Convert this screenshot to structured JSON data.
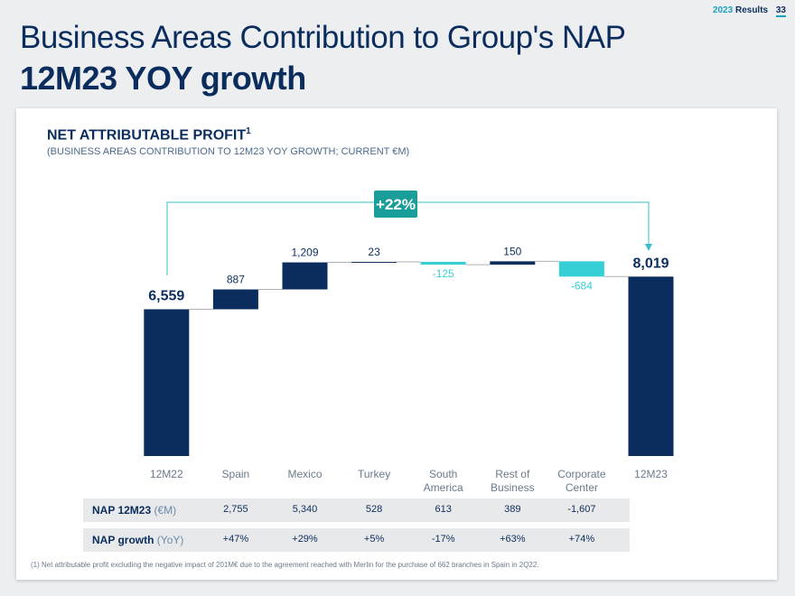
{
  "header": {
    "year": "2023",
    "label": "Results",
    "page": "33"
  },
  "title": "Business Areas Contribution to Group's NAP",
  "subtitle": "12M23 YOY growth",
  "chart_data": {
    "type": "waterfall",
    "title": "NET ATTRIBUTABLE PROFIT",
    "title_note": "1",
    "subtitle": "(BUSINESS AREAS CONTRIBUTION TO 12M23 YOY GROWTH; CURRENT €M)",
    "categories": [
      "12M22",
      "Spain",
      "Mexico",
      "Turkey",
      "South America",
      "Rest of Business",
      "Corporate Center",
      "12M23"
    ],
    "values": [
      6559,
      887,
      1209,
      23,
      -125,
      150,
      -684,
      8019
    ],
    "value_labels": [
      "6,559",
      "887",
      "1,209",
      "23",
      "-125",
      "150",
      "-684",
      "8,019"
    ],
    "totals": [
      0,
      7
    ],
    "total_color": "#0b2d5e",
    "increase_color": "#0b2d5e",
    "decrease_color": "#36cfd6",
    "ylim": [
      0,
      9000
    ],
    "annotation": "+22%"
  },
  "table": {
    "rows": [
      {
        "label": "NAP 12M23",
        "unit": "(€M)",
        "values": [
          "2,755",
          "5,340",
          "528",
          "613",
          "389",
          "-1,607"
        ]
      },
      {
        "label": "NAP growth",
        "unit": "(YoY)",
        "values": [
          "+47%",
          "+29%",
          "+5%",
          "-17%",
          "+63%",
          "+74%"
        ]
      }
    ]
  },
  "footnote": "(1) Net attributable profit excluding the negative impact of 201M€ due to the agreement reached with Merlin for the purchase of 662 branches in Spain in 2Q22."
}
